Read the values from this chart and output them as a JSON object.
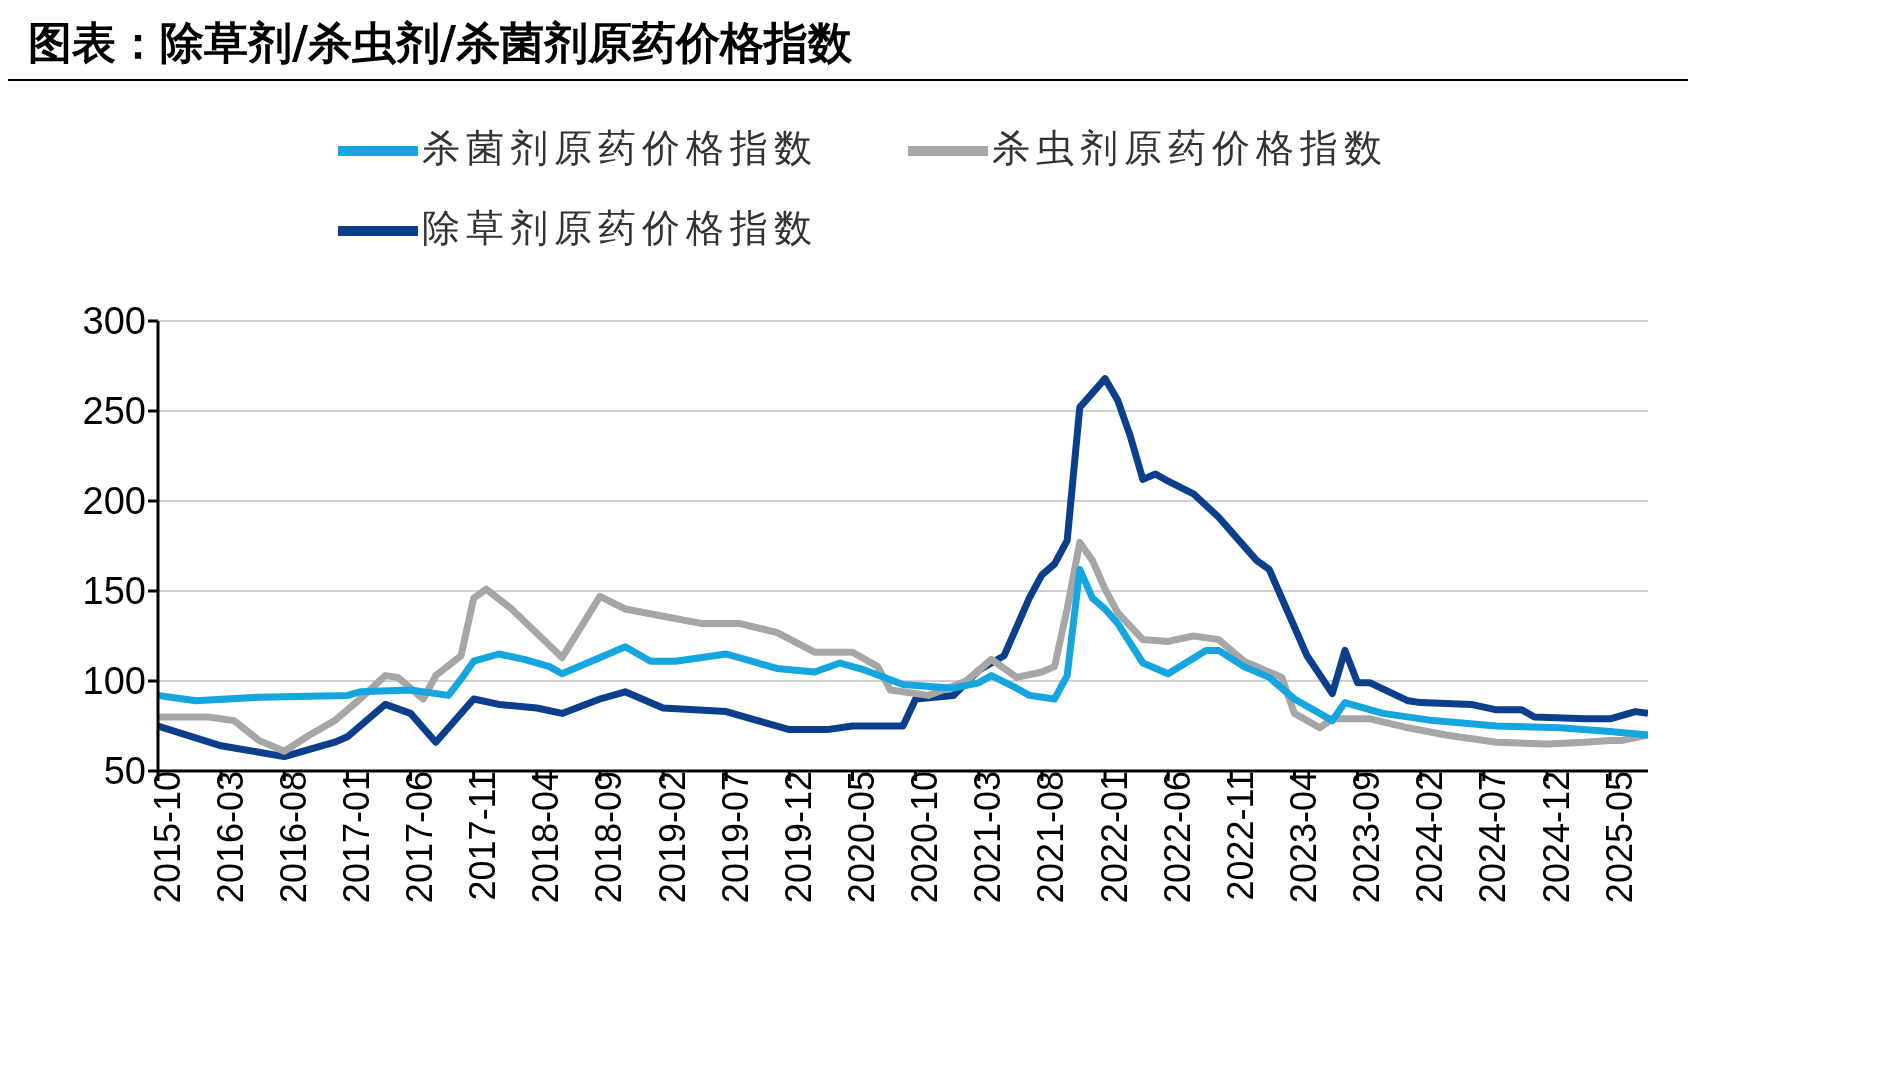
{
  "chart_data": {
    "type": "line",
    "title": "图表：除草剂/杀虫剂/杀菌剂原药价格指数",
    "xlim": [
      "2015-10",
      "2025-08"
    ],
    "xticks": [
      "2015-10",
      "2016-03",
      "2016-08",
      "2017-01",
      "2017-06",
      "2017-11",
      "2018-04",
      "2018-09",
      "2019-02",
      "2019-07",
      "2019-12",
      "2020-05",
      "2020-10",
      "2021-03",
      "2021-08",
      "2022-01",
      "2022-06",
      "2022-11",
      "2023-04",
      "2023-09",
      "2024-02",
      "2024-07",
      "2024-12",
      "2025-05"
    ],
    "ylim": [
      50,
      300
    ],
    "yticks": [
      50,
      100,
      150,
      200,
      250,
      300
    ],
    "grid": "y",
    "legend": "top",
    "marker": "none",
    "line_style": "solid",
    "series": [
      {
        "name": "除草剂原药价格指数",
        "color": "#0b3f8c",
        "x": [
          "2015-10",
          "2016-03",
          "2016-08",
          "2016-12",
          "2017-01",
          "2017-04",
          "2017-06",
          "2017-08",
          "2017-11",
          "2018-01",
          "2018-04",
          "2018-06",
          "2018-09",
          "2018-11",
          "2019-02",
          "2019-07",
          "2019-09",
          "2019-12",
          "2020-03",
          "2020-05",
          "2020-09",
          "2020-10",
          "2021-01",
          "2021-03",
          "2021-05",
          "2021-07",
          "2021-08",
          "2021-09",
          "2021-10",
          "2021-11",
          "2022-01",
          "2022-02",
          "2022-03",
          "2022-04",
          "2022-05",
          "2022-06",
          "2022-08",
          "2022-10",
          "2022-11",
          "2023-01",
          "2023-02",
          "2023-04",
          "2023-05",
          "2023-07",
          "2023-08",
          "2023-09",
          "2023-10",
          "2024-01",
          "2024-02",
          "2024-06",
          "2024-08",
          "2024-10",
          "2024-11",
          "2025-03",
          "2025-05",
          "2025-07",
          "2025-08"
        ],
        "values": [
          75,
          64,
          58,
          66,
          69,
          87,
          82,
          66,
          90,
          87,
          85,
          82,
          90,
          94,
          85,
          83,
          79,
          73,
          73,
          75,
          75,
          90,
          92,
          106,
          114,
          146,
          159,
          165,
          178,
          252,
          268,
          256,
          236,
          212,
          215,
          211,
          204,
          191,
          183,
          167,
          162,
          130,
          114,
          93,
          117,
          99,
          99,
          89,
          88,
          87,
          84,
          84,
          80,
          79,
          79,
          83,
          82
        ]
      },
      {
        "name": "杀虫剂原药价格指数",
        "color": "#a6a6a6",
        "x": [
          "2015-10",
          "2016-02",
          "2016-04",
          "2016-06",
          "2016-08",
          "2016-10",
          "2016-12",
          "2017-02",
          "2017-04",
          "2017-05",
          "2017-07",
          "2017-08",
          "2017-10",
          "2017-11",
          "2017-12",
          "2018-02",
          "2018-06",
          "2018-09",
          "2018-11",
          "2019-02",
          "2019-05",
          "2019-08",
          "2019-11",
          "2020-02",
          "2020-05",
          "2020-07",
          "2020-08",
          "2020-11",
          "2021-02",
          "2021-04",
          "2021-06",
          "2021-08",
          "2021-09",
          "2021-10",
          "2021-11",
          "2021-12",
          "2022-01",
          "2022-02",
          "2022-04",
          "2022-06",
          "2022-08",
          "2022-10",
          "2022-12",
          "2023-03",
          "2023-04",
          "2023-06",
          "2023-07",
          "2023-10",
          "2024-01",
          "2024-04",
          "2024-08",
          "2024-12",
          "2025-03",
          "2025-05",
          "2025-06",
          "2025-08"
        ],
        "values": [
          80,
          80,
          78,
          67,
          61,
          70,
          78,
          90,
          103,
          102,
          90,
          103,
          114,
          146,
          151,
          140,
          113,
          147,
          140,
          136,
          132,
          132,
          127,
          116,
          116,
          108,
          95,
          92,
          100,
          112,
          102,
          105,
          108,
          140,
          177,
          167,
          151,
          138,
          123,
          122,
          125,
          123,
          111,
          102,
          82,
          74,
          79,
          79,
          74,
          70,
          66,
          65,
          66,
          67,
          67,
          70
        ]
      },
      {
        "name": "杀菌剂原药价格指数",
        "color": "#16a6df",
        "x": [
          "2015-10",
          "2016-01",
          "2016-06",
          "2017-01",
          "2017-02",
          "2017-06",
          "2017-09",
          "2017-10",
          "2017-11",
          "2018-01",
          "2018-03",
          "2018-05",
          "2018-06",
          "2018-08",
          "2018-11",
          "2019-01",
          "2019-03",
          "2019-07",
          "2019-09",
          "2019-11",
          "2020-02",
          "2020-04",
          "2020-06",
          "2020-09",
          "2021-01",
          "2021-03",
          "2021-04",
          "2021-06",
          "2021-07",
          "2021-09",
          "2021-10",
          "2021-11",
          "2021-12",
          "2022-01",
          "2022-02",
          "2022-04",
          "2022-06",
          "2022-09",
          "2022-10",
          "2022-12",
          "2023-02",
          "2023-04",
          "2023-07",
          "2023-08",
          "2023-11",
          "2024-03",
          "2024-08",
          "2025-01",
          "2025-05",
          "2025-08"
        ],
        "values": [
          92,
          89,
          91,
          92,
          94,
          95,
          92,
          101,
          111,
          115,
          112,
          108,
          104,
          110,
          119,
          111,
          111,
          115,
          111,
          107,
          105,
          110,
          106,
          98,
          96,
          99,
          103,
          96,
          92,
          90,
          103,
          162,
          146,
          140,
          132,
          110,
          104,
          117,
          117,
          108,
          102,
          90,
          78,
          88,
          82,
          78,
          75,
          74,
          72,
          70
        ]
      }
    ]
  }
}
